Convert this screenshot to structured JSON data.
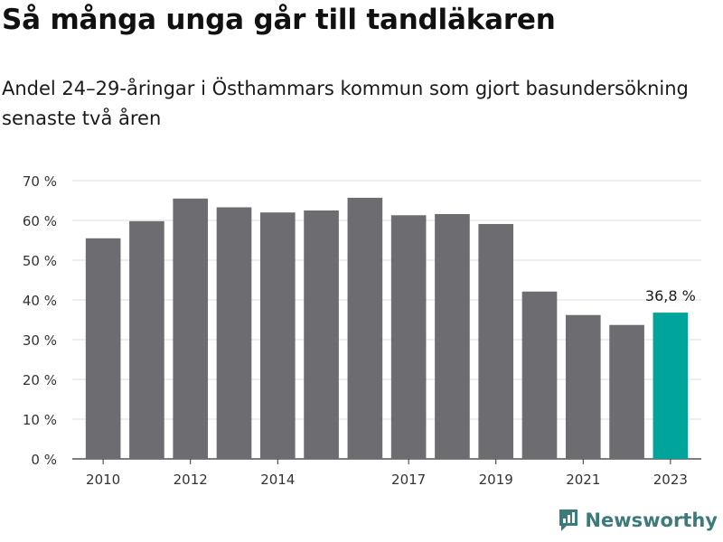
{
  "header": {
    "title": "Så många unga går till tandläkaren",
    "subtitle": "Andel 24–29-åringar i Östhammars kommun som gjort basundersökning senaste två åren"
  },
  "brand": {
    "name": "Newsworthy",
    "icon": "newsworthy-logo-icon"
  },
  "colors": {
    "bar": "#6d6c71",
    "highlight": "#00a49a",
    "grid": "#dcdcdc",
    "axis": "#333333"
  },
  "chart_data": {
    "type": "bar",
    "categories": [
      "2010",
      "2011",
      "2012",
      "2013",
      "2014",
      "2015",
      "2016",
      "2017",
      "2018",
      "2019",
      "2020",
      "2021",
      "2022",
      "2023"
    ],
    "values": [
      55.5,
      59.8,
      65.5,
      63.3,
      62.0,
      62.5,
      65.7,
      61.3,
      61.6,
      59.1,
      42.1,
      36.2,
      33.7,
      36.8
    ],
    "x_tick_labels": [
      "2010",
      "",
      "2012",
      "",
      "2014",
      "",
      "",
      "2017",
      "",
      "2019",
      "",
      "2021",
      "",
      "2023"
    ],
    "y_ticks": [
      "0 %",
      "10 %",
      "20 %",
      "30 %",
      "40 %",
      "50 %",
      "60 %",
      "70 %"
    ],
    "ylim": [
      0,
      70
    ],
    "highlight_index": 13,
    "data_labels": [
      {
        "index": 13,
        "text": "36,8 %"
      }
    ],
    "grid": true
  }
}
